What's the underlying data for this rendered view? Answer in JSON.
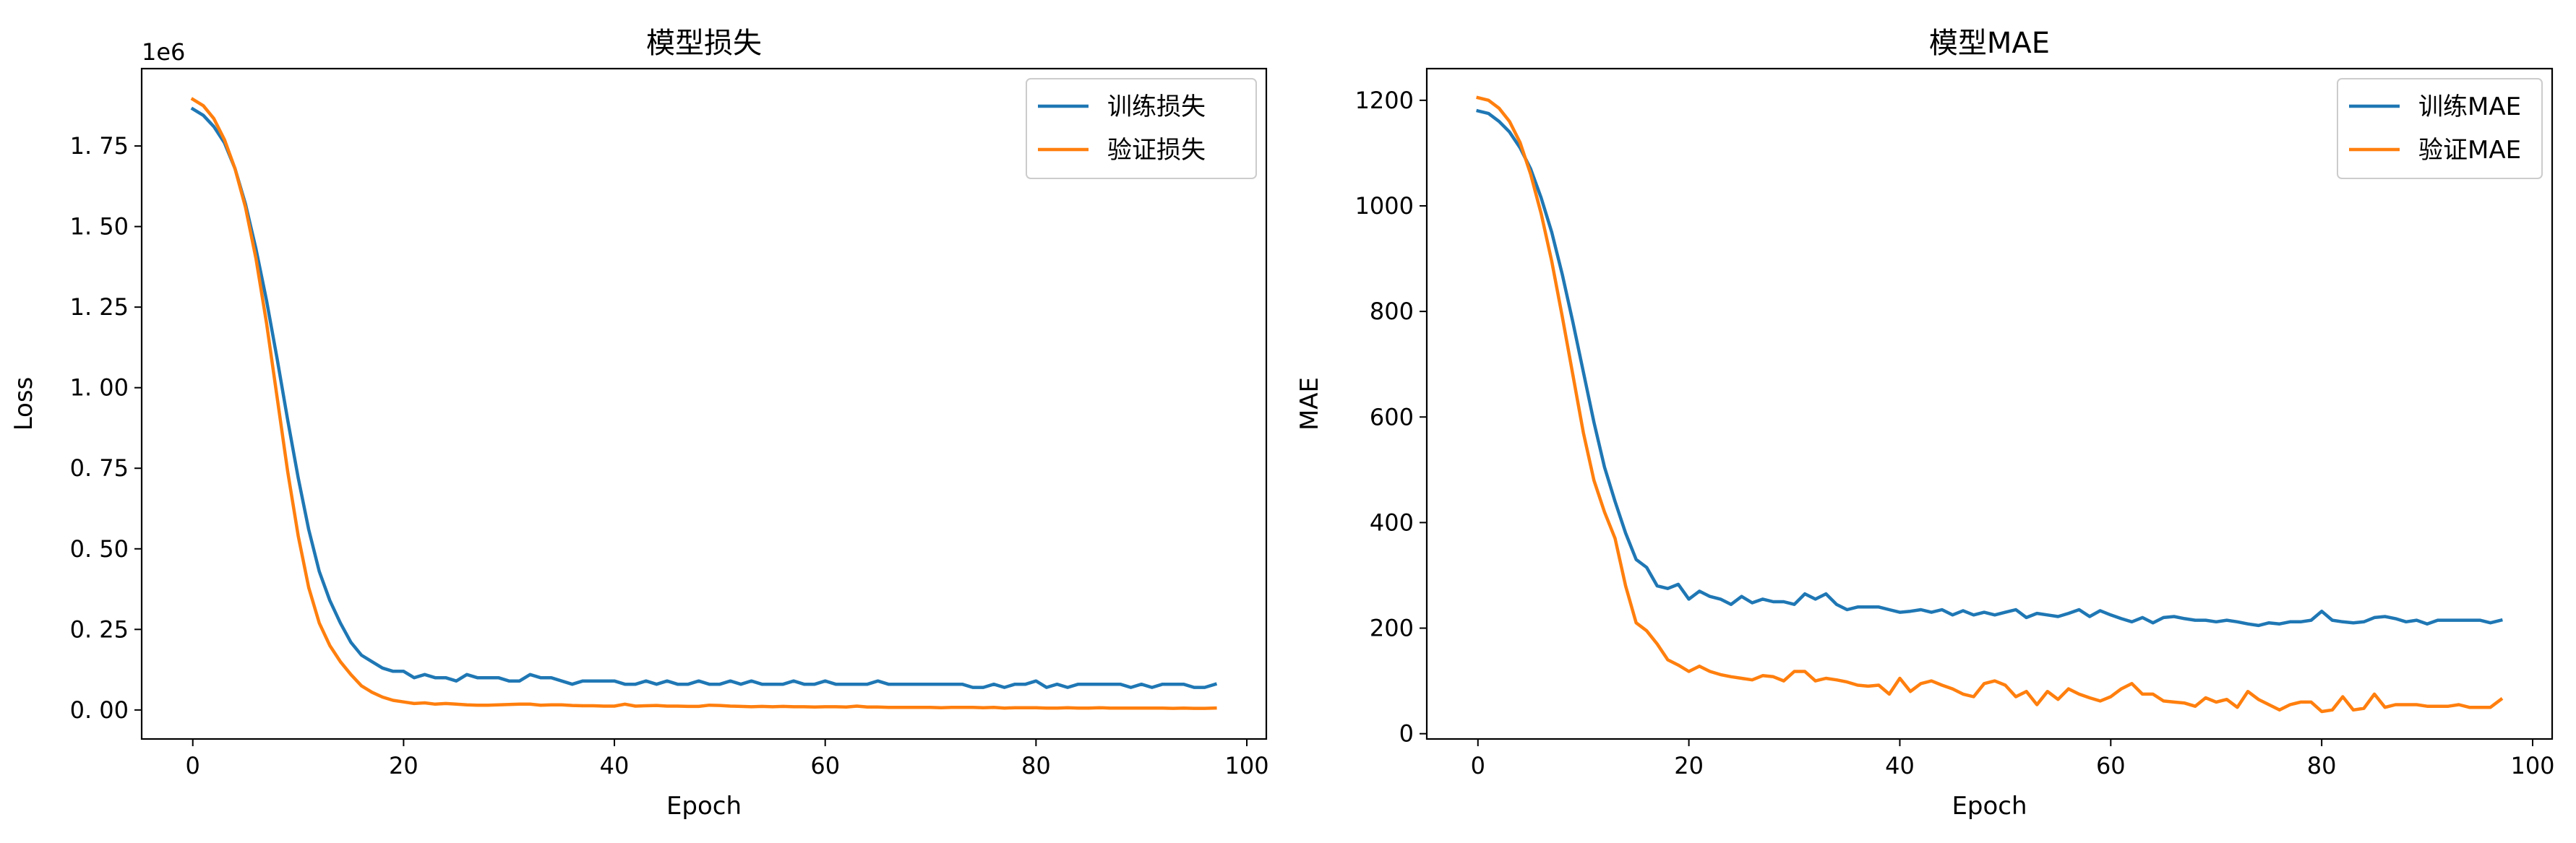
{
  "chart_data": [
    {
      "type": "line",
      "title": "模型损失",
      "xlabel": "Epoch",
      "ylabel": "Loss",
      "offset_label": "1e6",
      "xlim": [
        -4.85,
        101.85
      ],
      "ylim": [
        -0.09,
        1.99
      ],
      "xticks": [
        0,
        20,
        40,
        60,
        80,
        100
      ],
      "xtick_labels": [
        "0",
        "20",
        "40",
        "60",
        "80",
        "100"
      ],
      "yticks": [
        0.0,
        0.25,
        0.5,
        0.75,
        1.0,
        1.25,
        1.5,
        1.75
      ],
      "ytick_labels": [
        "0. 00",
        "0. 25",
        "0. 50",
        "0. 75",
        "1. 00",
        "1. 25",
        "1. 50",
        "1. 75"
      ],
      "grid": false,
      "legend_position": "top-right",
      "x": [
        0,
        1,
        2,
        3,
        4,
        5,
        6,
        7,
        8,
        9,
        10,
        11,
        12,
        13,
        14,
        15,
        16,
        17,
        18,
        19,
        20,
        21,
        22,
        23,
        24,
        25,
        26,
        27,
        28,
        29,
        30,
        31,
        32,
        33,
        34,
        35,
        36,
        37,
        38,
        39,
        40,
        41,
        42,
        43,
        44,
        45,
        46,
        47,
        48,
        49,
        50,
        51,
        52,
        53,
        54,
        55,
        56,
        57,
        58,
        59,
        60,
        61,
        62,
        63,
        64,
        65,
        66,
        67,
        68,
        69,
        70,
        71,
        72,
        73,
        74,
        75,
        76,
        77,
        78,
        79,
        80,
        81,
        82,
        83,
        84,
        85,
        86,
        87,
        88,
        89,
        90,
        91,
        92,
        93,
        94,
        95,
        96,
        97
      ],
      "series": [
        {
          "name": "训练损失",
          "color": "#1f77b4",
          "values": [
            1.865,
            1.845,
            1.81,
            1.76,
            1.68,
            1.57,
            1.43,
            1.27,
            1.09,
            0.9,
            0.72,
            0.56,
            0.43,
            0.34,
            0.27,
            0.21,
            0.17,
            0.15,
            0.13,
            0.12,
            0.12,
            0.1,
            0.11,
            0.1,
            0.1,
            0.09,
            0.11,
            0.1,
            0.1,
            0.1,
            0.09,
            0.09,
            0.11,
            0.1,
            0.1,
            0.09,
            0.08,
            0.09,
            0.09,
            0.09,
            0.09,
            0.08,
            0.08,
            0.09,
            0.08,
            0.09,
            0.08,
            0.08,
            0.09,
            0.08,
            0.08,
            0.09,
            0.08,
            0.09,
            0.08,
            0.08,
            0.08,
            0.09,
            0.08,
            0.08,
            0.09,
            0.08,
            0.08,
            0.08,
            0.08,
            0.09,
            0.08,
            0.08,
            0.08,
            0.08,
            0.08,
            0.08,
            0.08,
            0.08,
            0.07,
            0.07,
            0.08,
            0.07,
            0.08,
            0.08,
            0.09,
            0.07,
            0.08,
            0.07,
            0.08,
            0.08,
            0.08,
            0.08,
            0.08,
            0.07,
            0.08,
            0.07,
            0.08,
            0.08,
            0.08,
            0.07,
            0.07,
            0.08
          ]
        },
        {
          "name": "验证损失",
          "color": "#ff7f0e",
          "values": [
            1.895,
            1.875,
            1.835,
            1.77,
            1.68,
            1.56,
            1.4,
            1.2,
            0.97,
            0.74,
            0.54,
            0.38,
            0.27,
            0.2,
            0.15,
            0.11,
            0.075,
            0.055,
            0.04,
            0.03,
            0.025,
            0.02,
            0.022,
            0.018,
            0.02,
            0.018,
            0.016,
            0.015,
            0.015,
            0.016,
            0.017,
            0.018,
            0.018,
            0.015,
            0.016,
            0.016,
            0.014,
            0.013,
            0.013,
            0.012,
            0.012,
            0.018,
            0.012,
            0.013,
            0.014,
            0.012,
            0.012,
            0.011,
            0.011,
            0.015,
            0.014,
            0.012,
            0.011,
            0.01,
            0.011,
            0.01,
            0.011,
            0.01,
            0.01,
            0.009,
            0.01,
            0.01,
            0.009,
            0.012,
            0.009,
            0.009,
            0.008,
            0.008,
            0.008,
            0.008,
            0.008,
            0.007,
            0.008,
            0.008,
            0.008,
            0.007,
            0.008,
            0.006,
            0.007,
            0.007,
            0.007,
            0.006,
            0.006,
            0.007,
            0.006,
            0.006,
            0.007,
            0.006,
            0.006,
            0.006,
            0.006,
            0.006,
            0.006,
            0.005,
            0.006,
            0.005,
            0.005,
            0.006
          ]
        }
      ]
    },
    {
      "type": "line",
      "title": "模型MAE",
      "xlabel": "Epoch",
      "ylabel": "MAE",
      "xlim": [
        -4.85,
        101.85
      ],
      "ylim": [
        -10,
        1260
      ],
      "xticks": [
        0,
        20,
        40,
        60,
        80,
        100
      ],
      "xtick_labels": [
        "0",
        "20",
        "40",
        "60",
        "80",
        "100"
      ],
      "yticks": [
        0,
        200,
        400,
        600,
        800,
        1000,
        1200
      ],
      "ytick_labels": [
        "0",
        "200",
        "400",
        "600",
        "800",
        "1000",
        "1200"
      ],
      "grid": false,
      "legend_position": "top-right",
      "x": [
        0,
        1,
        2,
        3,
        4,
        5,
        6,
        7,
        8,
        9,
        10,
        11,
        12,
        13,
        14,
        15,
        16,
        17,
        18,
        19,
        20,
        21,
        22,
        23,
        24,
        25,
        26,
        27,
        28,
        29,
        30,
        31,
        32,
        33,
        34,
        35,
        36,
        37,
        38,
        39,
        40,
        41,
        42,
        43,
        44,
        45,
        46,
        47,
        48,
        49,
        50,
        51,
        52,
        53,
        54,
        55,
        56,
        57,
        58,
        59,
        60,
        61,
        62,
        63,
        64,
        65,
        66,
        67,
        68,
        69,
        70,
        71,
        72,
        73,
        74,
        75,
        76,
        77,
        78,
        79,
        80,
        81,
        82,
        83,
        84,
        85,
        86,
        87,
        88,
        89,
        90,
        91,
        92,
        93,
        94,
        95,
        96,
        97
      ],
      "series": [
        {
          "name": "训练MAE",
          "color": "#1f77b4",
          "values": [
            1180,
            1175,
            1160,
            1140,
            1110,
            1070,
            1015,
            950,
            870,
            780,
            685,
            590,
            505,
            440,
            380,
            330,
            315,
            280,
            275,
            283,
            255,
            270,
            260,
            255,
            245,
            260,
            248,
            255,
            250,
            250,
            245,
            265,
            255,
            265,
            245,
            235,
            240,
            240,
            240,
            235,
            230,
            232,
            235,
            230,
            235,
            225,
            233,
            225,
            230,
            225,
            230,
            235,
            220,
            228,
            225,
            222,
            228,
            235,
            222,
            233,
            225,
            218,
            212,
            220,
            210,
            220,
            222,
            218,
            215,
            215,
            212,
            215,
            212,
            208,
            205,
            210,
            208,
            212,
            212,
            215,
            232,
            215,
            212,
            210,
            212,
            220,
            222,
            218,
            212,
            215,
            208,
            215,
            215,
            215,
            215,
            215,
            210,
            215
          ]
        },
        {
          "name": "验证MAE",
          "color": "#ff7f0e",
          "values": [
            1205,
            1200,
            1185,
            1160,
            1120,
            1060,
            985,
            895,
            790,
            680,
            570,
            480,
            420,
            370,
            280,
            210,
            195,
            170,
            140,
            130,
            118,
            128,
            118,
            112,
            108,
            105,
            102,
            110,
            108,
            100,
            118,
            118,
            100,
            105,
            102,
            98,
            92,
            90,
            92,
            75,
            105,
            80,
            95,
            100,
            92,
            85,
            75,
            70,
            95,
            100,
            92,
            70,
            80,
            55,
            80,
            65,
            85,
            75,
            68,
            62,
            70,
            85,
            95,
            75,
            75,
            62,
            60,
            58,
            52,
            68,
            60,
            65,
            50,
            80,
            65,
            55,
            45,
            55,
            60,
            60,
            42,
            45,
            70,
            45,
            48,
            75,
            50,
            55,
            55,
            55,
            52,
            52,
            52,
            55,
            50,
            50,
            50,
            65
          ]
        }
      ]
    }
  ]
}
